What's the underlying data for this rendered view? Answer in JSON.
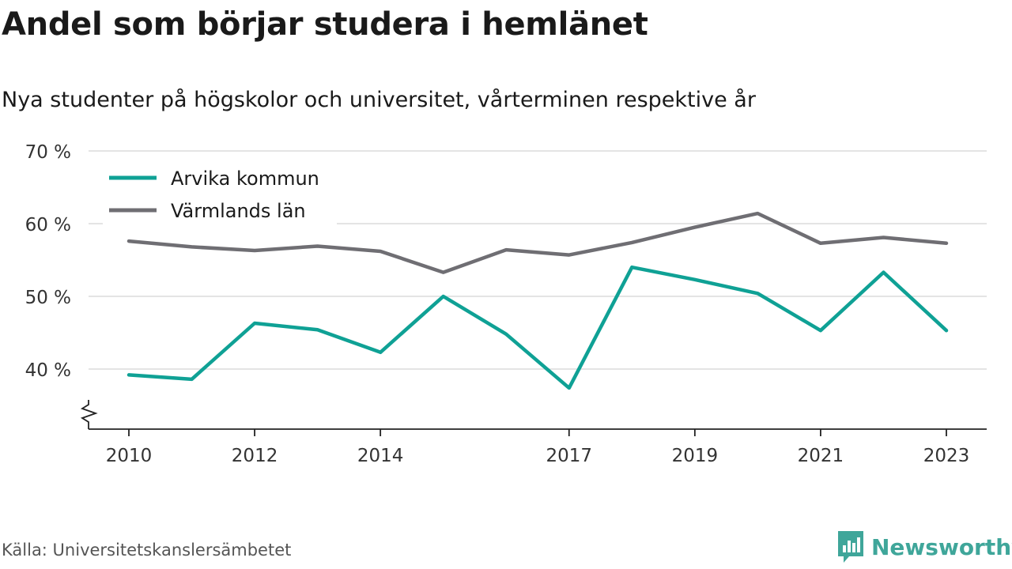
{
  "title": "Andel som börjar studera i hemlänet",
  "subtitle": "Nya studenter på högskolor och universitet, vårterminen respektive år",
  "source": "Källa: Universitetskanslersämbetet",
  "brand": {
    "name": "Newsworthy",
    "color": "#3fa69a"
  },
  "chart_data": {
    "type": "line",
    "x": [
      2010,
      2011,
      2012,
      2013,
      2014,
      2015,
      2016,
      2017,
      2018,
      2019,
      2020,
      2021,
      2022,
      2023
    ],
    "x_tick_labels": [
      "2010",
      "2012",
      "2014",
      "2017",
      "2019",
      "2021",
      "2023"
    ],
    "y_ticks": [
      40,
      50,
      60,
      70
    ],
    "y_tick_labels": [
      "40 %",
      "50 %",
      "60 %",
      "70 %"
    ],
    "ylim": [
      32,
      70
    ],
    "grid": true,
    "legend_position": "top-left",
    "series": [
      {
        "name": "Arvika kommun",
        "color": "#0fa195",
        "values": [
          39.2,
          38.6,
          46.3,
          45.4,
          42.3,
          50.0,
          44.8,
          37.4,
          54.0,
          52.3,
          50.4,
          45.3,
          53.3,
          45.3
        ]
      },
      {
        "name": "Värmlands län",
        "color": "#6f6e73",
        "values": [
          57.6,
          56.8,
          56.3,
          56.9,
          56.2,
          53.3,
          56.4,
          55.7,
          57.4,
          59.5,
          61.4,
          57.3,
          58.1,
          57.3
        ]
      }
    ]
  }
}
